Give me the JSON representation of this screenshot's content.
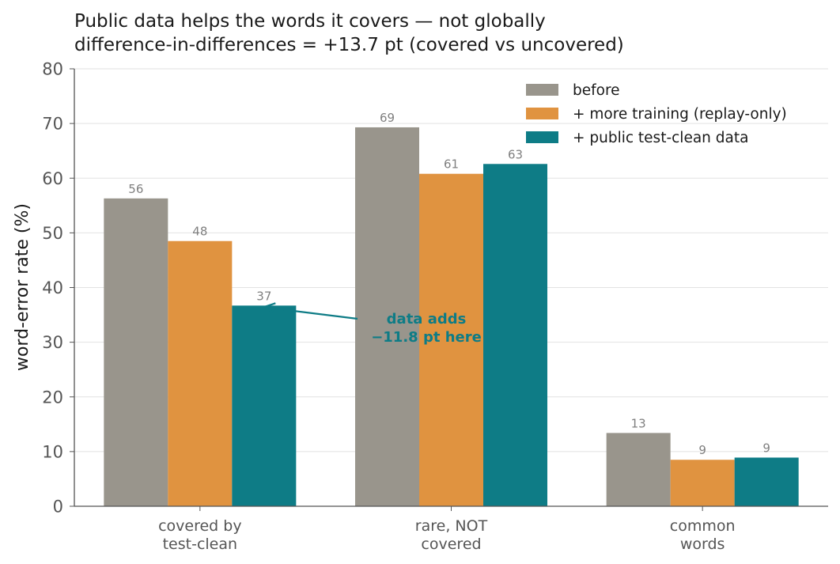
{
  "chart_data": {
    "type": "bar",
    "title": "Public data helps the words it covers — not globally",
    "subtitle": "difference-in-differences = +13.7 pt (covered vs uncovered)",
    "xlabel": "",
    "ylabel": "word-error rate (%)",
    "ylim": [
      0,
      80
    ],
    "yticks": [
      "0",
      "10",
      "20",
      "30",
      "40",
      "50",
      "60",
      "70",
      "80"
    ],
    "grid": true,
    "legend_position": "top-right",
    "categories": [
      "covered by\ntest-clean",
      "rare, NOT\ncovered",
      "common\nwords"
    ],
    "series": [
      {
        "name": "before",
        "color": "#99958c",
        "values": [
          56.3,
          69.3,
          13.4
        ],
        "labels": [
          "56",
          "69",
          "13"
        ]
      },
      {
        "name": "+ more training (replay-only)",
        "color": "#e09340",
        "values": [
          48.5,
          60.8,
          8.5
        ],
        "labels": [
          "48",
          "61",
          "9"
        ]
      },
      {
        "name": "+ public test-clean data",
        "color": "#0e7c86",
        "values": [
          36.7,
          62.6,
          8.9
        ],
        "labels": [
          "37",
          "63",
          "9"
        ]
      }
    ],
    "annotations": [
      {
        "text": "data adds\n−11.8 pt here",
        "color": "#0e7c86",
        "points_to": "covered by test-clean / + public test-clean data"
      }
    ]
  }
}
